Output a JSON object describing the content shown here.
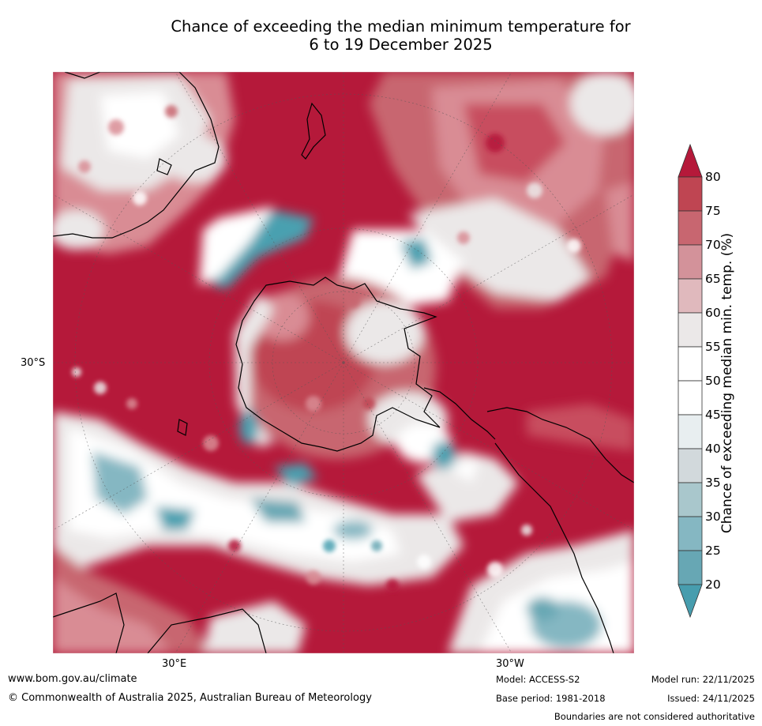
{
  "title": {
    "line1": "Chance of exceeding the median minimum temperature for",
    "line2": "6 to 19 December 2025"
  },
  "map": {
    "projection": "south-polar stereographic",
    "labels": {
      "lat_left": "30°S",
      "lon_bottom_left": "30°E",
      "lon_bottom_right": "30°W"
    },
    "colors": {
      "ocean_dominant": "#b5193a",
      "high": "#c84e5e",
      "mid_high": "#d98c94",
      "neutral": "#ebe8e8",
      "low": "#c9d8dc",
      "lowest": "#49a0b0"
    }
  },
  "colorbar": {
    "label": "Chance of exceeding median min. temp. (%)",
    "ticks": [
      "80",
      "75",
      "70",
      "65",
      "60",
      "55",
      "50",
      "45",
      "40",
      "35",
      "30",
      "25",
      "20"
    ],
    "bands": [
      {
        "range": "above 80",
        "color": "#b5193a"
      },
      {
        "range": "75-80",
        "color": "#bf4552"
      },
      {
        "range": "70-75",
        "color": "#c86670"
      },
      {
        "range": "65-70",
        "color": "#d3929a"
      },
      {
        "range": "60-65",
        "color": "#e0b9bd"
      },
      {
        "range": "55-60",
        "color": "#ebe8e8"
      },
      {
        "range": "50-55",
        "color": "#ffffff"
      },
      {
        "range": "45-50",
        "color": "#ffffff"
      },
      {
        "range": "40-45",
        "color": "#e8eef0"
      },
      {
        "range": "35-40",
        "color": "#d2d9dc"
      },
      {
        "range": "30-35",
        "color": "#a9c7cc"
      },
      {
        "range": "25-30",
        "color": "#85b7c2"
      },
      {
        "range": "20-25",
        "color": "#67a7b4"
      },
      {
        "range": "below 20",
        "color": "#479dae"
      }
    ]
  },
  "footer": {
    "website": "www.bom.gov.au/climate",
    "copyright": "© Commonwealth of Australia 2025, Australian Bureau of Meteorology",
    "model": "Model: ACCESS-S2",
    "base_period": "Base period: 1981-2018",
    "model_run": "Model run: 22/11/2025",
    "issued": "Issued: 24/11/2025",
    "disclaimer": "Boundaries are not considered authoritative"
  }
}
